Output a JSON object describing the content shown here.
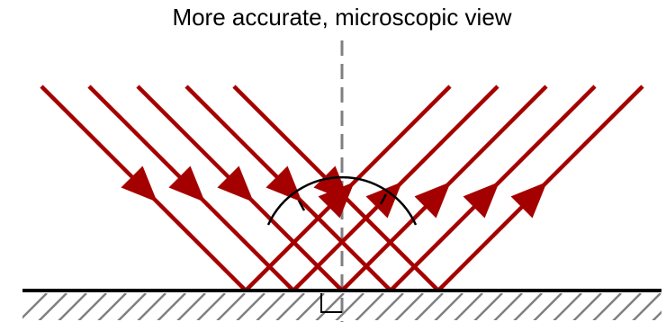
{
  "title": "More accurate, microscopic view",
  "colors": {
    "ray": "#a50000",
    "normal": "#808080",
    "surface": "#000000",
    "hatch": "#808080",
    "background": "#ffffff"
  },
  "icons": {
    "incident": "arrow-down-right-icon",
    "reflected": "arrow-up-right-icon",
    "angle": "angle-arc-icon",
    "right_angle": "right-angle-marker-icon"
  },
  "rays": {
    "incident_count": 5,
    "reflected_count": 5
  }
}
